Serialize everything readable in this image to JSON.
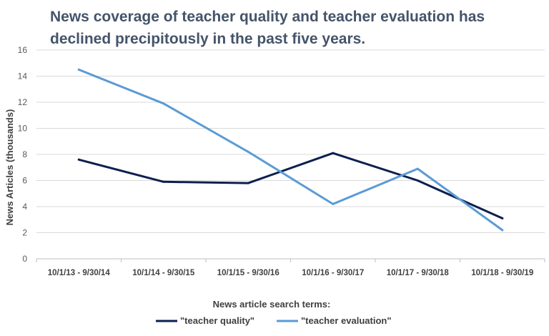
{
  "chart_data": {
    "type": "line",
    "title": "News coverage of teacher quality and teacher evaluation has declined precipitously in the past five years.",
    "xlabel": "News article search terms:",
    "ylabel": "News Articles (thousands)",
    "categories": [
      "10/1/13 - 9/30/14",
      "10/1/14 - 9/30/15",
      "10/1/15 - 9/30/16",
      "10/1/16 - 9/30/17",
      "10/1/17 - 9/30/18",
      "10/1/18 - 9/30/19"
    ],
    "ylim": [
      0,
      16
    ],
    "yticks": [
      0,
      2,
      4,
      6,
      8,
      10,
      12,
      14,
      16
    ],
    "grid": true,
    "legend_position": "bottom",
    "series": [
      {
        "name": "\"teacher quality\"",
        "color": "#0d1f4f",
        "values": [
          7.6,
          5.9,
          5.8,
          8.1,
          6.0,
          3.1
        ]
      },
      {
        "name": "\"teacher evaluation\"",
        "color": "#5b9bd5",
        "values": [
          14.5,
          11.9,
          8.2,
          4.2,
          6.9,
          2.2
        ]
      }
    ]
  }
}
